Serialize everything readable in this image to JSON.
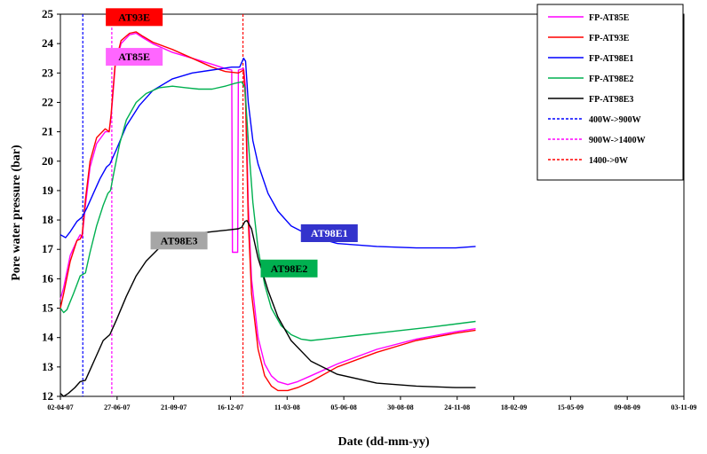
{
  "chart_data": {
    "type": "line",
    "xlabel": "Date (dd-mm-yy)",
    "ylabel": "Pore water pressure (bar)",
    "ylim": [
      12,
      25
    ],
    "yticks": [
      12,
      13,
      14,
      15,
      16,
      17,
      18,
      19,
      20,
      21,
      22,
      23,
      24,
      25
    ],
    "x_start": "2007-04-02",
    "x_end": "2009-11-03",
    "xtick_labels": [
      "02-04-07",
      "27-06-07",
      "21-09-07",
      "16-12-07",
      "11-03-08",
      "05-06-08",
      "30-08-08",
      "24-11-08",
      "18-02-09",
      "15-05-09",
      "09-08-09",
      "03-11-09"
    ],
    "grid": false,
    "legend_position": "top-right",
    "series": [
      {
        "name": "FP-AT85E",
        "color": "#ff00ff",
        "dash": false,
        "points": [
          [
            0,
            15.3
          ],
          [
            5,
            15.7
          ],
          [
            15,
            16.8
          ],
          [
            25,
            17.3
          ],
          [
            30,
            17.5
          ],
          [
            33,
            17.4
          ],
          [
            38,
            18.5
          ],
          [
            45,
            19.8
          ],
          [
            55,
            20.6
          ],
          [
            68,
            21.0
          ],
          [
            74,
            21.0
          ],
          [
            77,
            21.5
          ],
          [
            83,
            23.2
          ],
          [
            92,
            24.0
          ],
          [
            105,
            24.3
          ],
          [
            115,
            24.35
          ],
          [
            125,
            24.2
          ],
          [
            140,
            24.0
          ],
          [
            170,
            23.7
          ],
          [
            200,
            23.5
          ],
          [
            230,
            23.3
          ],
          [
            250,
            23.15
          ],
          [
            260,
            23.1
          ],
          [
            261,
            16.9
          ],
          [
            269,
            16.9
          ],
          [
            270,
            23.1
          ],
          [
            278,
            23.15
          ],
          [
            281,
            22.5
          ],
          [
            285,
            18.5
          ],
          [
            290,
            16.0
          ],
          [
            300,
            14.0
          ],
          [
            310,
            13.1
          ],
          [
            320,
            12.7
          ],
          [
            330,
            12.5
          ],
          [
            345,
            12.4
          ],
          [
            360,
            12.5
          ],
          [
            380,
            12.7
          ],
          [
            420,
            13.1
          ],
          [
            480,
            13.6
          ],
          [
            540,
            13.95
          ],
          [
            600,
            14.2
          ],
          [
            630,
            14.3
          ]
        ]
      },
      {
        "name": "FP-AT93E",
        "color": "#ff0000",
        "dash": false,
        "points": [
          [
            0,
            15.0
          ],
          [
            5,
            15.5
          ],
          [
            15,
            16.6
          ],
          [
            25,
            17.3
          ],
          [
            30,
            17.35
          ],
          [
            33,
            17.5
          ],
          [
            38,
            18.7
          ],
          [
            45,
            20.0
          ],
          [
            55,
            20.8
          ],
          [
            68,
            21.1
          ],
          [
            74,
            21.0
          ],
          [
            77,
            21.6
          ],
          [
            83,
            23.3
          ],
          [
            92,
            24.1
          ],
          [
            105,
            24.35
          ],
          [
            115,
            24.4
          ],
          [
            125,
            24.25
          ],
          [
            140,
            24.05
          ],
          [
            170,
            23.8
          ],
          [
            200,
            23.5
          ],
          [
            230,
            23.2
          ],
          [
            250,
            23.05
          ],
          [
            270,
            23.0
          ],
          [
            278,
            23.1
          ],
          [
            281,
            22.0
          ],
          [
            285,
            18.0
          ],
          [
            290,
            15.5
          ],
          [
            300,
            13.6
          ],
          [
            310,
            12.7
          ],
          [
            320,
            12.35
          ],
          [
            330,
            12.2
          ],
          [
            345,
            12.2
          ],
          [
            360,
            12.3
          ],
          [
            380,
            12.5
          ],
          [
            420,
            13.0
          ],
          [
            480,
            13.5
          ],
          [
            540,
            13.9
          ],
          [
            600,
            14.15
          ],
          [
            630,
            14.25
          ]
        ]
      },
      {
        "name": "FP-AT98E1",
        "color": "#0000ff",
        "dash": false,
        "points": [
          [
            0,
            17.5
          ],
          [
            8,
            17.4
          ],
          [
            15,
            17.6
          ],
          [
            25,
            17.95
          ],
          [
            33,
            18.1
          ],
          [
            40,
            18.4
          ],
          [
            50,
            18.9
          ],
          [
            60,
            19.4
          ],
          [
            70,
            19.8
          ],
          [
            75,
            19.9
          ],
          [
            85,
            20.4
          ],
          [
            100,
            21.2
          ],
          [
            120,
            21.9
          ],
          [
            140,
            22.4
          ],
          [
            170,
            22.8
          ],
          [
            200,
            23.0
          ],
          [
            230,
            23.1
          ],
          [
            260,
            23.2
          ],
          [
            272,
            23.2
          ],
          [
            278,
            23.5
          ],
          [
            281,
            23.4
          ],
          [
            285,
            22.0
          ],
          [
            292,
            20.7
          ],
          [
            300,
            19.9
          ],
          [
            315,
            18.9
          ],
          [
            330,
            18.3
          ],
          [
            350,
            17.8
          ],
          [
            380,
            17.45
          ],
          [
            420,
            17.2
          ],
          [
            480,
            17.1
          ],
          [
            540,
            17.05
          ],
          [
            600,
            17.05
          ],
          [
            630,
            17.1
          ]
        ]
      },
      {
        "name": "FP-AT98E2",
        "color": "#00b050",
        "dash": false,
        "points": [
          [
            0,
            15.0
          ],
          [
            5,
            14.85
          ],
          [
            10,
            14.95
          ],
          [
            20,
            15.5
          ],
          [
            30,
            16.1
          ],
          [
            38,
            16.2
          ],
          [
            45,
            16.9
          ],
          [
            55,
            17.8
          ],
          [
            65,
            18.5
          ],
          [
            72,
            18.9
          ],
          [
            76,
            19.0
          ],
          [
            82,
            19.7
          ],
          [
            90,
            20.6
          ],
          [
            100,
            21.4
          ],
          [
            115,
            22.0
          ],
          [
            130,
            22.3
          ],
          [
            150,
            22.5
          ],
          [
            170,
            22.55
          ],
          [
            190,
            22.5
          ],
          [
            210,
            22.45
          ],
          [
            230,
            22.45
          ],
          [
            250,
            22.55
          ],
          [
            265,
            22.65
          ],
          [
            275,
            22.7
          ],
          [
            280,
            22.5
          ],
          [
            285,
            20.7
          ],
          [
            292,
            18.6
          ],
          [
            300,
            17.0
          ],
          [
            310,
            15.8
          ],
          [
            320,
            15.0
          ],
          [
            335,
            14.4
          ],
          [
            350,
            14.1
          ],
          [
            365,
            13.95
          ],
          [
            380,
            13.9
          ],
          [
            400,
            13.95
          ],
          [
            440,
            14.05
          ],
          [
            500,
            14.2
          ],
          [
            560,
            14.35
          ],
          [
            630,
            14.55
          ]
        ]
      },
      {
        "name": "FP-AT98E3",
        "color": "#000000",
        "dash": false,
        "points": [
          [
            0,
            12.1
          ],
          [
            5,
            12.0
          ],
          [
            12,
            12.1
          ],
          [
            22,
            12.3
          ],
          [
            30,
            12.5
          ],
          [
            38,
            12.55
          ],
          [
            45,
            12.9
          ],
          [
            55,
            13.4
          ],
          [
            65,
            13.9
          ],
          [
            75,
            14.1
          ],
          [
            85,
            14.6
          ],
          [
            100,
            15.4
          ],
          [
            115,
            16.1
          ],
          [
            130,
            16.6
          ],
          [
            150,
            17.05
          ],
          [
            170,
            17.3
          ],
          [
            190,
            17.45
          ],
          [
            210,
            17.55
          ],
          [
            230,
            17.6
          ],
          [
            250,
            17.65
          ],
          [
            270,
            17.7
          ],
          [
            275,
            17.75
          ],
          [
            280,
            17.95
          ],
          [
            283,
            17.98
          ],
          [
            290,
            17.7
          ],
          [
            300,
            16.7
          ],
          [
            315,
            15.6
          ],
          [
            330,
            14.7
          ],
          [
            350,
            13.9
          ],
          [
            380,
            13.2
          ],
          [
            420,
            12.75
          ],
          [
            480,
            12.45
          ],
          [
            540,
            12.35
          ],
          [
            600,
            12.3
          ],
          [
            630,
            12.3
          ]
        ]
      },
      {
        "name": "400W->900W",
        "color": "#0000ff",
        "dash": true,
        "vline_day": 34
      },
      {
        "name": "900W->1400W",
        "color": "#ff00ff",
        "dash": true,
        "vline_day": 78
      },
      {
        "name": "1400->0W",
        "color": "#ff0000",
        "dash": true,
        "vline_day": 277
      }
    ],
    "annotations": [
      {
        "text": "AT93E",
        "bg": "#ff0000",
        "fg": "#000000",
        "x_day": 112,
        "y": 24.9
      },
      {
        "text": "AT85E",
        "bg": "#ff66ff",
        "fg": "#000000",
        "x_day": 112,
        "y": 23.55
      },
      {
        "text": "AT98E1",
        "bg": "#3333cc",
        "fg": "#ffffff",
        "x_day": 408,
        "y": 17.55
      },
      {
        "text": "AT98E2",
        "bg": "#00b050",
        "fg": "#000000",
        "x_day": 347,
        "y": 16.35
      },
      {
        "text": "AT98E3",
        "bg": "#a6a6a6",
        "fg": "#000000",
        "x_day": 180,
        "y": 17.3
      }
    ]
  }
}
